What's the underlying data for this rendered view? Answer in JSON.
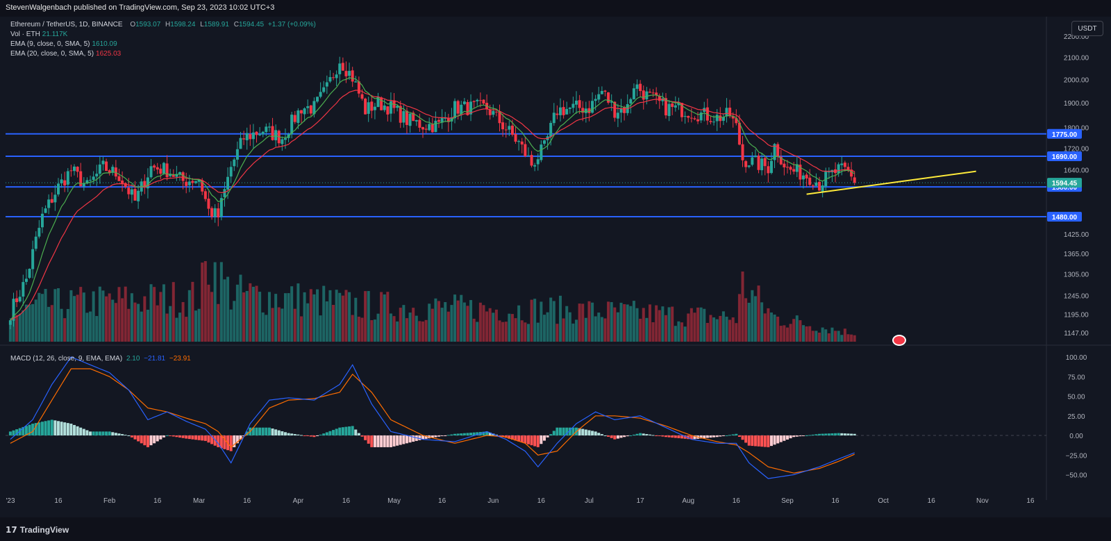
{
  "header": {
    "publisher": "StevenWalgenbach published on TradingView.com, Sep 23, 2023 10:02 UTC+3"
  },
  "legend": {
    "symbol": "Ethereum / TetherUS, 1D, BINANCE",
    "o_label": "O",
    "o": "1593.07",
    "h_label": "H",
    "h": "1598.24",
    "l_label": "L",
    "l": "1589.91",
    "c_label": "C",
    "c": "1594.45",
    "change": "+1.37 (+0.09%)",
    "vol_label": "Vol · ETH",
    "vol": "21.117K",
    "ema9_label": "EMA (9, close, 0, SMA, 5)",
    "ema9": "1610.09",
    "ema20_label": "EMA (20, close, 0, SMA, 5)",
    "ema20": "1625.03",
    "macd_label": "MACD (12, 26, close, 9, EMA, EMA)",
    "macd_hist": "2.10",
    "macd_line": "−21.81",
    "macd_signal": "−23.91"
  },
  "currency": "USDT",
  "footer": {
    "brand": "TradingView",
    "mark": "17"
  },
  "colors": {
    "bg": "#131722",
    "up": "#26a69a",
    "down": "#f23645",
    "ema9": "#4caf50",
    "ema20": "#f23645",
    "level": "#2962ff",
    "trend": "#ffeb3b",
    "macd": "#2962ff",
    "signal": "#ff6d00"
  },
  "chart_data": [
    {
      "type": "candlestick",
      "title": "Ethereum / TetherUS, 1D, BINANCE",
      "ylim": [
        1120,
        2230
      ],
      "y_ticks": [
        1147,
        1195,
        1245,
        1305,
        1365,
        1425,
        1480,
        1580,
        1640,
        1720,
        1800,
        1900,
        2000,
        2100,
        2200
      ],
      "y_tick_labels": [
        "1147.00",
        "1195.00",
        "1245.00",
        "1305.00",
        "1365.00",
        "1425.00",
        "1480.00",
        "1580.00",
        "1640.00",
        "1720.00",
        "1800.00",
        "1900.00",
        "2000.00",
        "2100.00",
        "2200.00"
      ],
      "x_labels": [
        "'23",
        "16",
        "Feb",
        "16",
        "Mar",
        "16",
        "Apr",
        "16",
        "May",
        "16",
        "Jun",
        "16",
        "Jul",
        "17",
        "Aug",
        "16",
        "Sep",
        "16",
        "Oct",
        "16",
        "Nov",
        "16"
      ],
      "x_label_days": [
        1,
        16,
        32,
        47,
        60,
        75,
        91,
        106,
        121,
        136,
        152,
        167,
        182,
        198,
        213,
        228,
        244,
        259,
        274,
        289,
        305,
        320
      ],
      "close_anchors": [
        [
          1,
          1200
        ],
        [
          6,
          1290
        ],
        [
          11,
          1480
        ],
        [
          16,
          1580
        ],
        [
          20,
          1640
        ],
        [
          25,
          1580
        ],
        [
          30,
          1650
        ],
        [
          35,
          1620
        ],
        [
          40,
          1530
        ],
        [
          45,
          1650
        ],
        [
          50,
          1640
        ],
        [
          55,
          1600
        ],
        [
          60,
          1610
        ],
        [
          63,
          1500
        ],
        [
          66,
          1480
        ],
        [
          70,
          1650
        ],
        [
          74,
          1760
        ],
        [
          80,
          1790
        ],
        [
          86,
          1760
        ],
        [
          92,
          1880
        ],
        [
          96,
          1880
        ],
        [
          100,
          1960
        ],
        [
          104,
          2090
        ],
        [
          108,
          2010
        ],
        [
          112,
          1870
        ],
        [
          116,
          1900
        ],
        [
          120,
          1880
        ],
        [
          125,
          1830
        ],
        [
          130,
          1810
        ],
        [
          135,
          1810
        ],
        [
          140,
          1880
        ],
        [
          145,
          1880
        ],
        [
          150,
          1880
        ],
        [
          155,
          1810
        ],
        [
          160,
          1740
        ],
        [
          164,
          1660
        ],
        [
          168,
          1720
        ],
        [
          172,
          1870
        ],
        [
          178,
          1880
        ],
        [
          182,
          1880
        ],
        [
          186,
          1950
        ],
        [
          190,
          1870
        ],
        [
          194,
          1880
        ],
        [
          196,
          1980
        ],
        [
          200,
          1930
        ],
        [
          206,
          1880
        ],
        [
          212,
          1870
        ],
        [
          218,
          1850
        ],
        [
          222,
          1840
        ],
        [
          226,
          1850
        ],
        [
          228,
          1800
        ],
        [
          230,
          1680
        ],
        [
          235,
          1660
        ],
        [
          238,
          1650
        ],
        [
          240,
          1730
        ],
        [
          244,
          1640
        ],
        [
          248,
          1630
        ],
        [
          252,
          1610
        ],
        [
          254,
          1590
        ],
        [
          256,
          1610
        ],
        [
          260,
          1640
        ],
        [
          263,
          1630
        ],
        [
          265,
          1594.45
        ]
      ],
      "levels": [
        {
          "price": 1775,
          "label": "1775.00"
        },
        {
          "price": 1690,
          "label": "1690.00"
        },
        {
          "price": 1580,
          "label": "1580.00"
        },
        {
          "price": 1480,
          "label": "1480.00"
        }
      ],
      "last_price": {
        "price": 1594.45,
        "label": "1594.45"
      },
      "trendline": [
        [
          250,
          1555
        ],
        [
          303,
          1635
        ]
      ]
    },
    {
      "type": "bar",
      "title": "Vol · ETH",
      "volume_anchors": [
        [
          1,
          0.3
        ],
        [
          10,
          0.45
        ],
        [
          30,
          0.5
        ],
        [
          60,
          0.55
        ],
        [
          63,
          1.0
        ],
        [
          70,
          0.6
        ],
        [
          100,
          0.5
        ],
        [
          110,
          0.45
        ],
        [
          150,
          0.4
        ],
        [
          170,
          0.4
        ],
        [
          200,
          0.35
        ],
        [
          228,
          0.3
        ],
        [
          230,
          0.7
        ],
        [
          240,
          0.3
        ],
        [
          265,
          0.1
        ]
      ]
    },
    {
      "type": "line",
      "title": "MACD (12, 26, close, 9, EMA, EMA)",
      "ylim": [
        -75,
        120
      ],
      "y_ticks": [
        100,
        75,
        50,
        25,
        0,
        -25,
        -50
      ],
      "y_tick_labels": [
        "100.00",
        "75.00",
        "50.00",
        "25.00",
        "0.00",
        "−25.00",
        "−50.00"
      ],
      "series": [
        {
          "name": "MACD",
          "x": [
            1,
            8,
            14,
            20,
            26,
            32,
            38,
            44,
            50,
            56,
            62,
            66,
            70,
            76,
            82,
            88,
            96,
            104,
            108,
            114,
            120,
            130,
            140,
            150,
            156,
            162,
            166,
            172,
            178,
            184,
            190,
            198,
            206,
            214,
            222,
            228,
            232,
            238,
            246,
            254,
            260,
            265
          ],
          "y": [
            -5,
            20,
            65,
            100,
            90,
            80,
            58,
            20,
            30,
            18,
            8,
            -10,
            -35,
            15,
            45,
            48,
            45,
            65,
            90,
            40,
            5,
            -5,
            -8,
            5,
            -5,
            -20,
            -40,
            -10,
            15,
            30,
            20,
            25,
            10,
            -5,
            -10,
            -10,
            -35,
            -55,
            -50,
            -40,
            -30,
            -22
          ]
        },
        {
          "name": "Signal",
          "x": [
            1,
            8,
            14,
            20,
            26,
            32,
            38,
            44,
            50,
            56,
            62,
            66,
            70,
            76,
            82,
            88,
            96,
            104,
            108,
            114,
            120,
            130,
            140,
            150,
            156,
            162,
            166,
            172,
            178,
            184,
            190,
            198,
            206,
            214,
            222,
            228,
            232,
            238,
            246,
            254,
            260,
            265
          ],
          "y": [
            -10,
            5,
            45,
            85,
            85,
            75,
            58,
            35,
            30,
            22,
            15,
            5,
            -15,
            5,
            35,
            45,
            47,
            55,
            78,
            55,
            20,
            0,
            -10,
            0,
            -2,
            -10,
            -25,
            -20,
            5,
            25,
            25,
            22,
            12,
            0,
            -8,
            -12,
            -22,
            -40,
            -48,
            -42,
            -33,
            -24
          ]
        }
      ]
    }
  ]
}
